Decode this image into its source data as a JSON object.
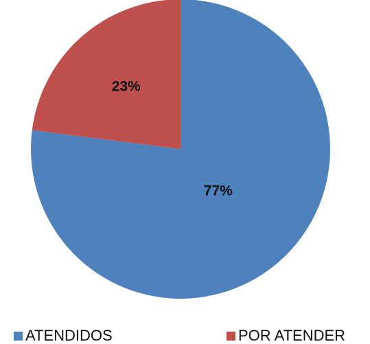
{
  "chart_data": {
    "type": "pie",
    "categories": [
      "ATENDIDOS",
      "POR ATENDER"
    ],
    "values": [
      77,
      23
    ],
    "value_labels": [
      "77%",
      "23%"
    ],
    "colors": [
      "#4f81bd",
      "#c0504d"
    ],
    "legend": "bottom"
  }
}
